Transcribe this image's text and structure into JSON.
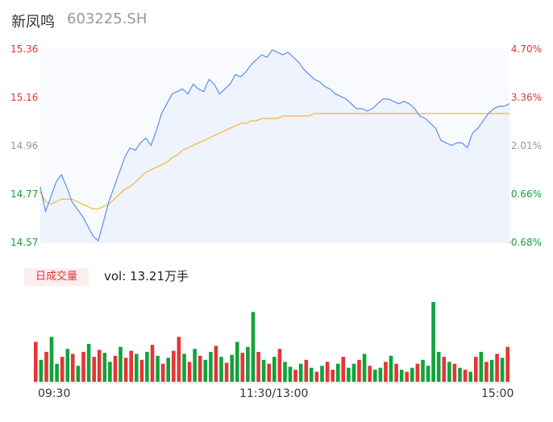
{
  "header": {
    "name": "新凤鸣",
    "code": "603225.SH"
  },
  "volume_panel": {
    "tab_label": "日成交量",
    "vol_text": "vol: 13.21万手"
  },
  "colors": {
    "price": "#5b8ff0",
    "avg": "#f5b53c",
    "up": "#e63434",
    "down": "#10a33b",
    "flat": "#999999"
  },
  "chart_data": {
    "type": "line",
    "x_ticks": [
      "09:30",
      "11:30/13:00",
      "15:00"
    ],
    "y_left_ticks": [
      "15.36",
      "15.16",
      "14.96",
      "14.77",
      "14.57"
    ],
    "y_right_ticks": [
      "4.70%",
      "3.36%",
      "2.01%",
      "0.66%",
      "-0.68%"
    ],
    "ylim": [
      14.57,
      15.36
    ],
    "price": [
      14.8,
      14.7,
      14.76,
      14.82,
      14.85,
      14.8,
      14.74,
      14.71,
      14.68,
      14.64,
      14.6,
      14.58,
      14.66,
      14.74,
      14.8,
      14.86,
      14.92,
      14.96,
      14.95,
      14.98,
      15.0,
      14.97,
      15.03,
      15.1,
      15.14,
      15.18,
      15.19,
      15.2,
      15.18,
      15.22,
      15.2,
      15.19,
      15.24,
      15.22,
      15.18,
      15.2,
      15.22,
      15.26,
      15.25,
      15.27,
      15.3,
      15.32,
      15.34,
      15.33,
      15.36,
      15.35,
      15.34,
      15.35,
      15.33,
      15.31,
      15.28,
      15.26,
      15.24,
      15.23,
      15.21,
      15.2,
      15.18,
      15.17,
      15.16,
      15.14,
      15.12,
      15.12,
      15.11,
      15.12,
      15.14,
      15.16,
      15.16,
      15.15,
      15.14,
      15.15,
      15.14,
      15.12,
      15.09,
      15.08,
      15.06,
      15.04,
      14.99,
      14.98,
      14.97,
      14.98,
      14.98,
      14.96,
      15.02,
      15.04,
      15.07,
      15.1,
      15.12,
      15.13,
      15.13,
      15.14
    ],
    "avg": [
      14.78,
      14.74,
      14.73,
      14.74,
      14.75,
      14.75,
      14.75,
      14.74,
      14.73,
      14.72,
      14.71,
      14.71,
      14.72,
      14.73,
      14.75,
      14.77,
      14.79,
      14.8,
      14.82,
      14.84,
      14.86,
      14.87,
      14.88,
      14.89,
      14.9,
      14.92,
      14.93,
      14.95,
      14.96,
      14.97,
      14.98,
      14.99,
      15.0,
      15.01,
      15.02,
      15.03,
      15.04,
      15.05,
      15.06,
      15.06,
      15.07,
      15.07,
      15.08,
      15.08,
      15.08,
      15.08,
      15.09,
      15.09,
      15.09,
      15.09,
      15.09,
      15.09,
      15.1,
      15.1,
      15.1,
      15.1,
      15.1,
      15.1,
      15.1,
      15.1,
      15.1,
      15.1,
      15.1,
      15.1,
      15.1,
      15.1,
      15.1,
      15.1,
      15.1,
      15.1,
      15.1,
      15.1,
      15.1,
      15.1,
      15.1,
      15.1,
      15.1,
      15.1,
      15.1,
      15.1,
      15.1,
      15.1,
      15.1,
      15.1,
      15.1,
      15.1,
      15.1,
      15.1,
      15.1,
      15.1
    ],
    "volume": [
      40,
      22,
      30,
      45,
      18,
      25,
      33,
      28,
      16,
      30,
      38,
      25,
      32,
      29,
      20,
      26,
      35,
      24,
      31,
      28,
      22,
      30,
      37,
      26,
      18,
      24,
      31,
      45,
      28,
      20,
      33,
      26,
      22,
      30,
      36,
      25,
      19,
      27,
      40,
      29,
      35,
      70,
      30,
      22,
      18,
      25,
      33,
      20,
      15,
      12,
      18,
      22,
      14,
      10,
      16,
      20,
      12,
      18,
      25,
      14,
      18,
      22,
      28,
      16,
      12,
      14,
      20,
      26,
      18,
      12,
      10,
      14,
      18,
      22,
      16,
      80,
      30,
      25,
      20,
      18,
      14,
      12,
      10,
      25,
      30,
      20,
      22,
      28,
      24,
      35
    ],
    "volume_dir": [
      "up",
      "down",
      "up",
      "down",
      "down",
      "up",
      "down",
      "up",
      "down",
      "up",
      "down",
      "up",
      "up",
      "down",
      "down",
      "up",
      "down",
      "up",
      "up",
      "down",
      "up",
      "down",
      "up",
      "down",
      "up",
      "down",
      "up",
      "up",
      "down",
      "up",
      "down",
      "up",
      "down",
      "down",
      "up",
      "down",
      "up",
      "down",
      "down",
      "up",
      "down",
      "down",
      "up",
      "down",
      "up",
      "down",
      "up",
      "down",
      "down",
      "up",
      "down",
      "up",
      "down",
      "up",
      "down",
      "up",
      "up",
      "down",
      "up",
      "down",
      "down",
      "up",
      "down",
      "up",
      "down",
      "down",
      "up",
      "down",
      "up",
      "down",
      "up",
      "down",
      "up",
      "down",
      "down",
      "down",
      "down",
      "up",
      "down",
      "up",
      "down",
      "up",
      "down",
      "up",
      "down",
      "up",
      "down",
      "up",
      "down",
      "up"
    ]
  }
}
